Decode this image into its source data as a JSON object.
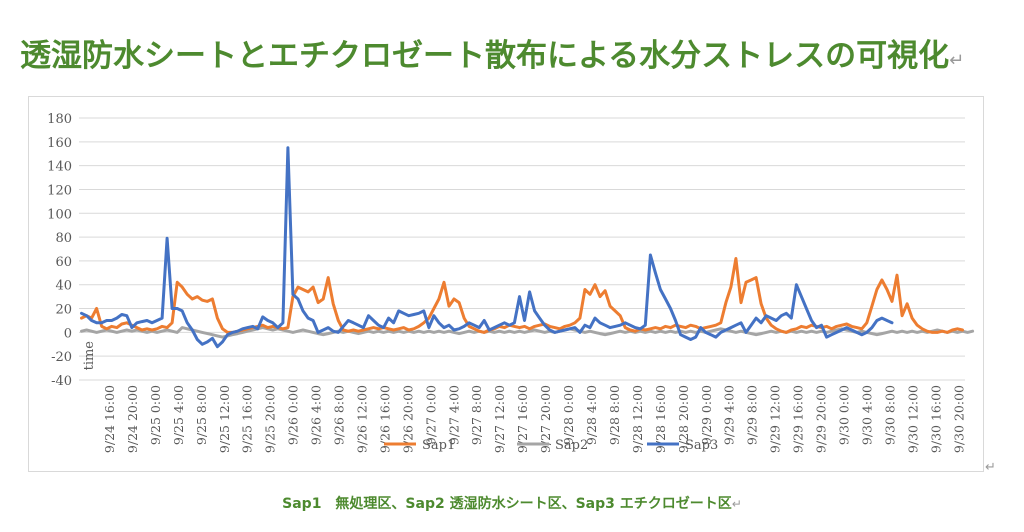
{
  "page": {
    "title": "透湿防水シートとエチクロゼート散布による水分ストレスの可視化",
    "paragraph_mark": "↵",
    "caption": "Sap1　無処理区、Sap2 透湿防水シート区、Sap3 エチクロゼート区"
  },
  "colors": {
    "title": "#4d8a2f",
    "Sap1": "#ED7D31",
    "Sap2": "#A5A5A5",
    "Sap3": "#4472C4",
    "grid": "#d9d9d9",
    "axis_text": "#595959"
  },
  "chart_data": {
    "type": "line",
    "xlabel": "time",
    "ylabel": "",
    "ylim": [
      -40,
      180
    ],
    "yticks": [
      -40,
      -20,
      0,
      20,
      40,
      60,
      80,
      100,
      120,
      140,
      160,
      180
    ],
    "grid": true,
    "legend_position": "bottom",
    "x_tick_labels": [
      "9/24 16:00",
      "9/24 20:00",
      "9/25 0:00",
      "9/25 4:00",
      "9/25 8:00",
      "9/25 12:00",
      "9/25 16:00",
      "9/25 20:00",
      "9/26 0:00",
      "9/26 4:00",
      "9/26 8:00",
      "9/26 12:00",
      "9/26 16:00",
      "9/26 20:00",
      "9/27 0:00",
      "9/27 4:00",
      "9/27 8:00",
      "9/27 12:00",
      "9/27 16:00",
      "9/27 20:00",
      "9/28 0:00",
      "9/28 4:00",
      "9/28 8:00",
      "9/28 12:00",
      "9/28 16:00",
      "9/28 20:00",
      "9/29 0:00",
      "9/29 4:00",
      "9/29 8:00",
      "9/29 12:00",
      "9/29 16:00",
      "9/29 20:00",
      "9/30 0:00",
      "9/30 4:00",
      "9/30 8:00",
      "9/30 12:00",
      "9/30 16:00",
      "9/30 20:00"
    ],
    "x_ticks_per_label": 3,
    "series": [
      {
        "name": "Sap1",
        "values": [
          12,
          14,
          12,
          20,
          5,
          3,
          5,
          4,
          7,
          8,
          6,
          4,
          2,
          3,
          2,
          3,
          5,
          4,
          8,
          42,
          38,
          32,
          28,
          30,
          27,
          26,
          28,
          12,
          3,
          0,
          0,
          1,
          2,
          3,
          4,
          5,
          6,
          4,
          5,
          4,
          3,
          4,
          30,
          38,
          36,
          34,
          38,
          25,
          28,
          46,
          24,
          10,
          2,
          1,
          2,
          1,
          2,
          3,
          4,
          3,
          4,
          3,
          2,
          3,
          4,
          2,
          3,
          5,
          8,
          12,
          20,
          28,
          42,
          22,
          28,
          25,
          12,
          5,
          3,
          1,
          0,
          2,
          3,
          5,
          4,
          6,
          5,
          4,
          5,
          3,
          5,
          6,
          7,
          5,
          4,
          3,
          5,
          6,
          8,
          12,
          36,
          32,
          40,
          30,
          35,
          22,
          18,
          14,
          4,
          2,
          1,
          3,
          2,
          3,
          4,
          3,
          5,
          4,
          6,
          5,
          4,
          6,
          5,
          3,
          4,
          5,
          6,
          8,
          25,
          38,
          62,
          25,
          42,
          44,
          46,
          24,
          12,
          6,
          3,
          1,
          0,
          2,
          3,
          5,
          4,
          6,
          5,
          4,
          5,
          3,
          5,
          6,
          7,
          5,
          4,
          3,
          8,
          22,
          36,
          44,
          36,
          26,
          48,
          14,
          24,
          12,
          6,
          3,
          1,
          0,
          0,
          1,
          0,
          2,
          3,
          2
        ]
      },
      {
        "name": "Sap2",
        "values": [
          1,
          2,
          1,
          0,
          1,
          2,
          1,
          0,
          1,
          2,
          1,
          2,
          1,
          0,
          1,
          0,
          1,
          2,
          1,
          0,
          4,
          3,
          2,
          1,
          0,
          -1,
          -2,
          -3,
          -4,
          -3,
          -2,
          -1,
          0,
          1,
          2,
          3,
          4,
          3,
          2,
          3,
          2,
          1,
          0,
          1,
          2,
          1,
          0,
          -1,
          -2,
          -1,
          0,
          1,
          0,
          1,
          0,
          -1,
          0,
          1,
          0,
          1,
          0,
          1,
          0,
          1,
          0,
          1,
          0,
          1,
          0,
          1,
          0,
          1,
          0,
          1,
          0,
          -1,
          0,
          1,
          0,
          1,
          0,
          1,
          0,
          1,
          0,
          1,
          0,
          1,
          0,
          1,
          2,
          1,
          0,
          1,
          0,
          1,
          2,
          3,
          2,
          1,
          0,
          1,
          0,
          -1,
          -2,
          -1,
          0,
          1,
          0,
          1,
          0,
          1,
          0,
          1,
          0,
          1,
          0,
          1,
          0,
          1,
          0,
          1,
          0,
          1,
          0,
          1,
          2,
          3,
          2,
          1,
          0,
          1,
          0,
          -1,
          -2,
          -1,
          0,
          1,
          0,
          1,
          0,
          1,
          0,
          1,
          0,
          1,
          0,
          1,
          0,
          1,
          2,
          3,
          2,
          1,
          0,
          1,
          0,
          -1,
          -2,
          -1,
          0,
          1,
          0,
          1,
          0,
          1,
          0,
          1,
          0,
          1,
          2,
          1,
          0,
          1,
          0,
          1,
          0,
          1
        ]
      },
      {
        "name": "Sap3",
        "values": [
          16,
          14,
          10,
          8,
          8,
          10,
          10,
          12,
          15,
          14,
          4,
          8,
          9,
          10,
          8,
          10,
          12,
          79,
          20,
          20,
          18,
          8,
          2,
          -6,
          -10,
          -8,
          -5,
          -12,
          -8,
          -2,
          0,
          1,
          3,
          4,
          5,
          3,
          13,
          10,
          8,
          4,
          8,
          155,
          32,
          28,
          18,
          12,
          10,
          0,
          2,
          4,
          1,
          0,
          5,
          10,
          8,
          6,
          4,
          14,
          10,
          6,
          4,
          12,
          8,
          18,
          16,
          14,
          15,
          16,
          18,
          4,
          14,
          8,
          4,
          6,
          2,
          3,
          5,
          8,
          6,
          4,
          10,
          2,
          4,
          6,
          8,
          6,
          8,
          30,
          10,
          34,
          18,
          12,
          6,
          2,
          0,
          1,
          2,
          3,
          4,
          0,
          6,
          4,
          12,
          8,
          6,
          4,
          5,
          6,
          8,
          6,
          4,
          3,
          6,
          65,
          50,
          36,
          28,
          20,
          10,
          -2,
          -4,
          -6,
          -4,
          4,
          0,
          -2,
          -4,
          0,
          2,
          4,
          6,
          8,
          0,
          6,
          12,
          8,
          14,
          12,
          10,
          14,
          16,
          12,
          40,
          30,
          20,
          10,
          4,
          6,
          -4,
          -2,
          0,
          2,
          4,
          2,
          0,
          -2,
          0,
          4,
          10,
          12,
          10,
          8
        ]
      }
    ]
  }
}
